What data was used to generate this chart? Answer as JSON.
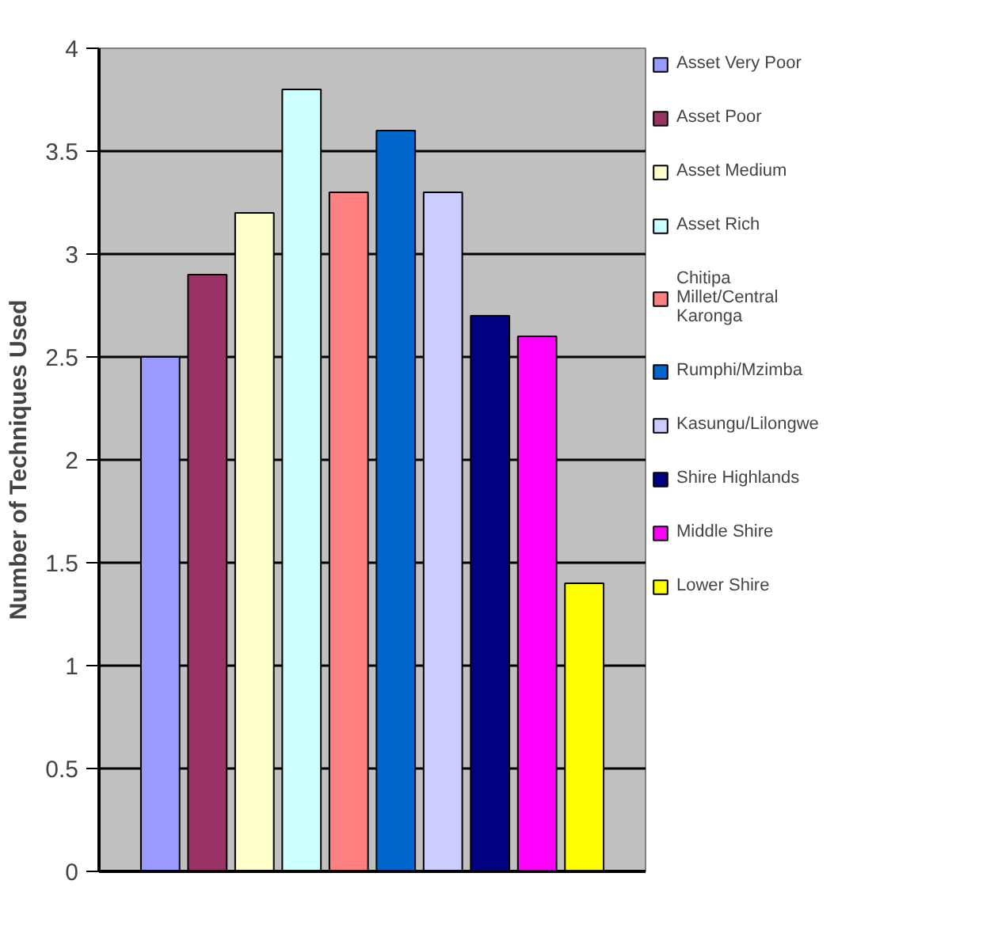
{
  "chart_data": {
    "type": "bar",
    "ylabel": "Number of Techniques Used",
    "categories": [
      null
    ],
    "series": [
      {
        "name": "Asset Very Poor",
        "color": "#9999ff",
        "values": [
          2.5
        ]
      },
      {
        "name": "Asset Poor",
        "color": "#993366",
        "values": [
          2.9
        ]
      },
      {
        "name": "Asset Medium",
        "color": "#ffffcc",
        "values": [
          3.2
        ]
      },
      {
        "name": "Asset Rich",
        "color": "#ccffff",
        "values": [
          3.8
        ]
      },
      {
        "name": "Chitipa Millet/Central Karonga",
        "color": "#ff8080",
        "values": [
          3.3
        ]
      },
      {
        "name": "Rumphi/Mzimba",
        "color": "#0066cc",
        "values": [
          3.6
        ]
      },
      {
        "name": "Kasungu/Lilongwe",
        "color": "#ccccff",
        "values": [
          3.3
        ]
      },
      {
        "name": "Shire Highlands",
        "color": "#000080",
        "values": [
          2.7
        ]
      },
      {
        "name": "Middle Shire",
        "color": "#ff00ff",
        "values": [
          2.6
        ]
      },
      {
        "name": "Lower Shire",
        "color": "#ffff00",
        "values": [
          1.4
        ]
      }
    ],
    "ylim": [
      0,
      4
    ],
    "yticks": [
      0,
      0.5,
      1,
      1.5,
      2,
      2.5,
      3,
      3.5,
      4
    ],
    "grid": "y",
    "legend": "right",
    "tick_labels": "y"
  }
}
